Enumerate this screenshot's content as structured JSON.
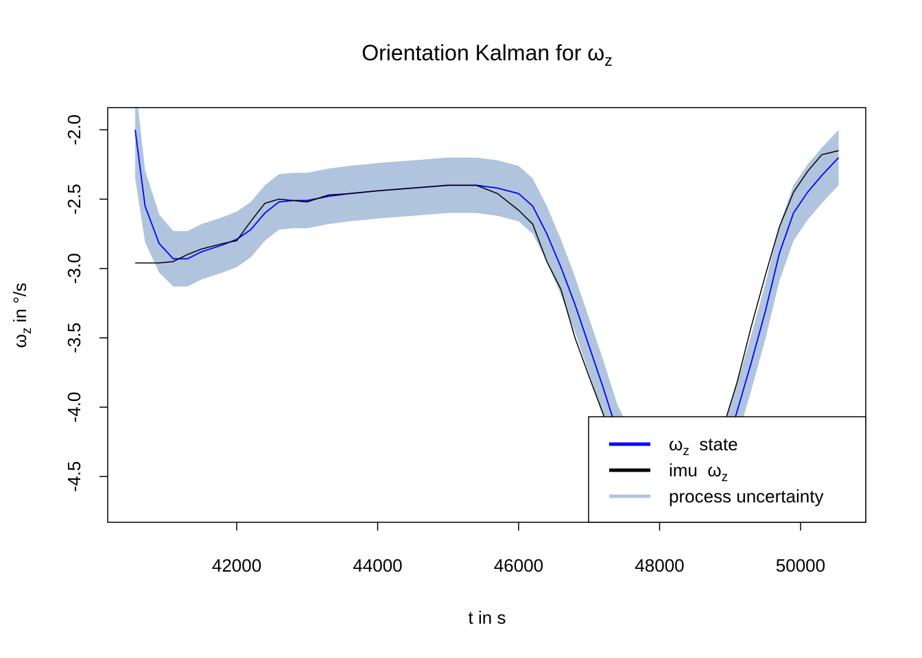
{
  "chart_data": {
    "type": "line",
    "title": {
      "main": "Orientation Kalman for ω",
      "sub": "z"
    },
    "xlabel": "t in s",
    "ylabel": {
      "main": "ω",
      "sub": "z",
      "post": " in °/s"
    },
    "xlim": [
      40170,
      50925
    ],
    "ylim": [
      -4.83,
      -1.84
    ],
    "xticks": [
      42000,
      44000,
      46000,
      48000,
      50000
    ],
    "yticks": [
      {
        "value": -2.0,
        "label": "-2.0"
      },
      -2.5,
      {
        "value": -3.0,
        "label": "-3.0"
      },
      -3.5,
      {
        "value": -4.0,
        "label": "-4.0"
      },
      -4.5
    ],
    "legend": "bottom-right",
    "x": [
      40560,
      40700,
      40900,
      41100,
      41300,
      41500,
      41800,
      42000,
      42200,
      42400,
      42600,
      42800,
      43000,
      43300,
      43600,
      44000,
      44500,
      45000,
      45400,
      45700,
      46000,
      46200,
      46400,
      46600,
      46800,
      47000,
      47200,
      47400,
      47700,
      48000,
      48300,
      48600,
      48900,
      49100,
      49300,
      49500,
      49700,
      49900,
      50100,
      50300,
      50540
    ],
    "series": [
      {
        "name": "ω",
        "name_sub": "z",
        "name_post": "  state",
        "color": "#0000ff",
        "values": [
          -2.0,
          -2.55,
          -2.82,
          -2.93,
          -2.93,
          -2.88,
          -2.83,
          -2.79,
          -2.72,
          -2.6,
          -2.52,
          -2.51,
          -2.51,
          -2.48,
          -2.46,
          -2.44,
          -2.42,
          -2.4,
          -2.4,
          -2.42,
          -2.46,
          -2.55,
          -2.75,
          -2.99,
          -3.26,
          -3.56,
          -3.86,
          -4.18,
          -4.5,
          -4.7,
          -4.78,
          -4.65,
          -4.35,
          -4.03,
          -3.68,
          -3.31,
          -2.89,
          -2.6,
          -2.45,
          -2.33,
          -2.2
        ]
      },
      {
        "name": "imu  ω",
        "name_sub": "z",
        "color": "#000000",
        "values": [
          -2.96,
          -2.96,
          -2.96,
          -2.95,
          -2.9,
          -2.86,
          -2.82,
          -2.8,
          -2.66,
          -2.53,
          -2.5,
          -2.51,
          -2.52,
          -2.47,
          -2.46,
          -2.44,
          -2.42,
          -2.4,
          -2.4,
          -2.46,
          -2.58,
          -2.68,
          -2.95,
          -3.15,
          -3.5,
          -3.78,
          -4.05,
          -4.4,
          -4.65,
          -4.78,
          -4.8,
          -4.55,
          -4.15,
          -3.82,
          -3.42,
          -3.05,
          -2.7,
          -2.45,
          -2.3,
          -2.18,
          -2.15
        ]
      },
      {
        "name": "process uncertainty",
        "color": "#b0c4de",
        "upper": [
          -1.65,
          -2.29,
          -2.61,
          -2.73,
          -2.73,
          -2.68,
          -2.63,
          -2.59,
          -2.52,
          -2.4,
          -2.32,
          -2.31,
          -2.31,
          -2.28,
          -2.26,
          -2.24,
          -2.22,
          -2.2,
          -2.2,
          -2.22,
          -2.26,
          -2.35,
          -2.55,
          -2.79,
          -3.06,
          -3.36,
          -3.66,
          -3.98,
          -4.3,
          -4.5,
          -4.58,
          -4.45,
          -4.15,
          -3.83,
          -3.48,
          -3.11,
          -2.69,
          -2.4,
          -2.25,
          -2.13,
          -2.0
        ],
        "lower": [
          -2.35,
          -2.81,
          -3.03,
          -3.13,
          -3.13,
          -3.08,
          -3.03,
          -2.99,
          -2.92,
          -2.8,
          -2.72,
          -2.71,
          -2.71,
          -2.68,
          -2.66,
          -2.64,
          -2.62,
          -2.6,
          -2.6,
          -2.62,
          -2.66,
          -2.75,
          -2.95,
          -3.19,
          -3.46,
          -3.76,
          -4.06,
          -4.38,
          -4.7,
          -4.9,
          -4.98,
          -4.85,
          -4.55,
          -4.23,
          -3.88,
          -3.51,
          -3.09,
          -2.8,
          -2.65,
          -2.53,
          -2.4
        ]
      }
    ]
  }
}
